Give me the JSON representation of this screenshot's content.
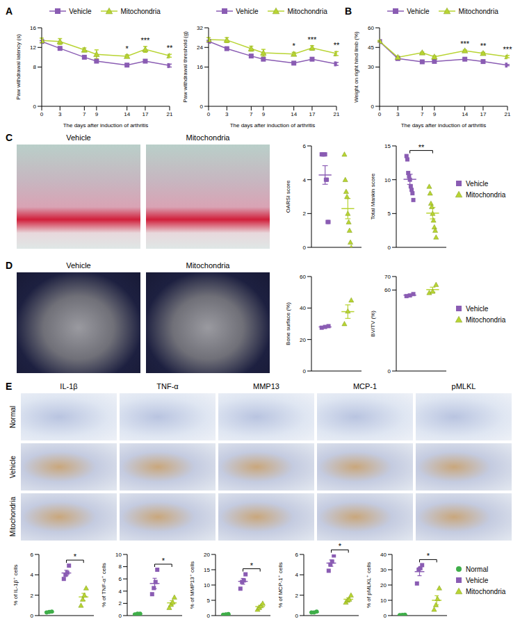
{
  "figure": {
    "panel_labels": [
      "A",
      "B",
      "C",
      "D",
      "E"
    ],
    "images": {
      "C": {
        "titles": [
          "Vehicle",
          "Mitochondria"
        ]
      },
      "D": {
        "titles": [
          "Vehicle",
          "Mitochondria"
        ]
      },
      "E": {
        "columns": [
          "IL-1β",
          "TNF-α",
          "MMP13",
          "MCP-1",
          "pMLKL"
        ],
        "rows": [
          "Normal",
          "Vehicle",
          "Mitochondria"
        ]
      }
    }
  },
  "chart_data": [
    {
      "type": "line",
      "x": [
        0,
        3,
        7,
        9,
        14,
        17,
        21
      ],
      "xlim": [
        0,
        21
      ],
      "xticks": [
        0,
        3,
        7,
        9,
        14,
        17,
        21
      ],
      "ylim": [
        0,
        16
      ],
      "yticks": [
        0,
        8,
        12,
        16
      ],
      "x_label": "The days after induction of arthritis",
      "y_label": "Paw withdrawal latency (s)",
      "legend": "top",
      "series": [
        {
          "name": "Vehicle",
          "color": "#8a5cb3",
          "marker": "square",
          "values": [
            13.2,
            11.8,
            10.0,
            9.2,
            8.4,
            9.2,
            8.3
          ],
          "errors": [
            0.2,
            0.2,
            0.2,
            0.2,
            0.2,
            0.2,
            0.3
          ]
        },
        {
          "name": "Mitochondria",
          "color": "#b8d432",
          "marker": "triangle",
          "values": [
            13.4,
            13.2,
            11.5,
            10.6,
            10.2,
            11.6,
            10.3
          ],
          "errors": [
            0.5,
            0.6,
            0.4,
            0.9,
            0.3,
            0.6,
            0.3
          ]
        }
      ],
      "annotations": [
        {
          "x": 14,
          "text": "*"
        },
        {
          "x": 17,
          "text": "***"
        },
        {
          "x": 21,
          "text": "**"
        }
      ]
    },
    {
      "type": "line",
      "x": [
        0,
        3,
        7,
        9,
        14,
        17,
        21
      ],
      "xlim": [
        0,
        21
      ],
      "xticks": [
        0,
        3,
        7,
        9,
        14,
        17,
        21
      ],
      "ylim": [
        0,
        32
      ],
      "yticks": [
        0,
        16,
        24,
        32
      ],
      "x_label": "The days after induction of arthritis",
      "y_label": "Paw withdrawal threshold (g)",
      "legend": "top",
      "series": [
        {
          "name": "Vehicle",
          "color": "#8a5cb3",
          "marker": "square",
          "values": [
            26.5,
            23.5,
            20.5,
            19.2,
            17.6,
            19.2,
            17.3
          ],
          "errors": [
            0.4,
            0.4,
            0.4,
            0.4,
            0.4,
            0.4,
            0.6
          ]
        },
        {
          "name": "Mitochondria",
          "color": "#b8d432",
          "marker": "triangle",
          "values": [
            27.2,
            27.0,
            23.5,
            21.8,
            21.3,
            23.8,
            21.5
          ],
          "errors": [
            0.8,
            1.0,
            1.0,
            1.4,
            0.7,
            0.9,
            0.8
          ]
        }
      ],
      "annotations": [
        {
          "x": 14,
          "text": "*"
        },
        {
          "x": 17,
          "text": "***"
        },
        {
          "x": 21,
          "text": "**"
        }
      ]
    },
    {
      "type": "line",
      "x": [
        0,
        3,
        7,
        9,
        14,
        17,
        21
      ],
      "xlim": [
        0,
        21
      ],
      "xticks": [
        0,
        3,
        7,
        9,
        14,
        17,
        21
      ],
      "ylim": [
        0,
        60
      ],
      "yticks": [
        0,
        30,
        45,
        60
      ],
      "x_label": "The days after induction of arthritis",
      "y_label": "Weight on right hind limb (%)",
      "legend": "top",
      "series": [
        {
          "name": "Vehicle",
          "color": "#8a5cb3",
          "marker": "square",
          "values": [
            49.5,
            36.5,
            34.0,
            34.3,
            36.0,
            34.2,
            31.5
          ],
          "errors": [
            0.5,
            0.6,
            0.6,
            0.5,
            0.5,
            0.5,
            0.5
          ]
        },
        {
          "name": "Mitochondria",
          "color": "#b8d432",
          "marker": "triangle",
          "values": [
            49.8,
            37.5,
            41.0,
            37.8,
            42.5,
            40.5,
            38.0
          ],
          "errors": [
            0.5,
            0.8,
            0.5,
            0.8,
            0.6,
            0.8,
            0.9
          ]
        }
      ],
      "annotations": [
        {
          "x": 14,
          "text": "***"
        },
        {
          "x": 17,
          "text": "**"
        },
        {
          "x": 21,
          "text": "***"
        }
      ]
    },
    {
      "type": "scatter",
      "y_label": "OARSI score",
      "ylim": [
        0,
        6
      ],
      "yticks": [
        0,
        2,
        4,
        6
      ],
      "tick_labels": "y",
      "series": [
        {
          "name": "Vehicle",
          "color": "#8a5cb3",
          "marker": "square",
          "values": [
            5.5,
            5.5,
            5.5,
            5.5,
            5.5,
            4,
            4,
            1.5,
            1.5
          ],
          "mean": 4.28,
          "sem": 0.55
        },
        {
          "name": "Mitochondria",
          "color": "#b8d432",
          "marker": "triangle",
          "values": [
            5.5,
            4,
            3.3,
            3,
            2,
            1.5,
            1,
            0.3,
            0
          ],
          "mean": 2.29,
          "sem": 0.6
        }
      ]
    },
    {
      "type": "scatter",
      "y_label": "Total Mankin score",
      "ylim": [
        0,
        15
      ],
      "yticks": [
        0,
        5,
        10,
        15
      ],
      "tick_labels": "y",
      "legend": "right",
      "series": [
        {
          "name": "Vehicle",
          "color": "#8a5cb3",
          "marker": "square",
          "values": [
            13.5,
            13,
            11,
            10.5,
            10,
            9,
            8.5,
            8,
            7
          ],
          "mean": 10.06,
          "sem": 0.75
        },
        {
          "name": "Mitochondria",
          "color": "#b8d432",
          "marker": "triangle",
          "values": [
            9,
            8,
            6.5,
            6,
            5,
            4,
            3,
            2.5,
            1.5
          ],
          "mean": 5.06,
          "sem": 0.85
        }
      ],
      "annotations": [
        {
          "between": [
            "Vehicle",
            "Mitochondria"
          ],
          "text": "**"
        }
      ]
    },
    {
      "type": "scatter",
      "y_label": "Bone surface (%)",
      "ylim": [
        0,
        60
      ],
      "yticks": [
        0,
        20,
        40,
        60
      ],
      "tick_labels": "y",
      "series": [
        {
          "name": "Vehicle",
          "color": "#8a5cb3",
          "marker": "square",
          "values": [
            27.5,
            28,
            28.5
          ],
          "mean": 28,
          "sem": 0.3
        },
        {
          "name": "Mitochondria",
          "color": "#b8d432",
          "marker": "triangle",
          "values": [
            30,
            38,
            45
          ],
          "mean": 37.7,
          "sem": 4.3
        }
      ]
    },
    {
      "type": "scatter",
      "y_label": "BV/TV (%)",
      "ylim": [
        0,
        70
      ],
      "yticks": [
        0,
        60,
        70
      ],
      "tick_labels": "y",
      "legend": "right",
      "series": [
        {
          "name": "Vehicle",
          "color": "#8a5cb3",
          "marker": "square",
          "values": [
            55.5,
            56,
            57
          ],
          "mean": 56.2,
          "sem": 0.45
        },
        {
          "name": "Mitochondria",
          "color": "#b8d432",
          "marker": "triangle",
          "values": [
            58,
            59,
            64
          ],
          "mean": 60.3,
          "sem": 1.8
        }
      ]
    },
    {
      "type": "scatter",
      "y_label": "% of IL-1β⁺ cells",
      "ylim": [
        0,
        6
      ],
      "yticks": [
        0,
        2,
        4,
        6
      ],
      "tick_labels": "y",
      "series": [
        {
          "name": "Normal",
          "color": "#3fae49",
          "marker": "circle",
          "values": [
            0.3,
            0.35,
            0.4
          ],
          "mean": 0.35,
          "sem": 0.03
        },
        {
          "name": "Vehicle",
          "color": "#8a5cb3",
          "marker": "square",
          "values": [
            3.6,
            4,
            4.2,
            4.9
          ],
          "mean": 4.18,
          "sem": 0.27
        },
        {
          "name": "Mitochondria",
          "color": "#b8d432",
          "marker": "triangle",
          "values": [
            1,
            1.6,
            2,
            2.7
          ],
          "mean": 1.83,
          "sem": 0.35
        }
      ],
      "annotations": [
        {
          "between": [
            "Vehicle",
            "Mitochondria"
          ],
          "text": "*"
        }
      ]
    },
    {
      "type": "scatter",
      "y_label": "% of TNF-α⁺ cells",
      "ylim": [
        0,
        10
      ],
      "yticks": [
        0,
        2,
        4,
        6,
        8,
        10
      ],
      "tick_labels": "y",
      "series": [
        {
          "name": "Normal",
          "color": "#3fae49",
          "marker": "circle",
          "values": [
            0.2,
            0.3,
            0.3
          ],
          "mean": 0.27,
          "sem": 0.03
        },
        {
          "name": "Vehicle",
          "color": "#8a5cb3",
          "marker": "square",
          "values": [
            3.5,
            4.5,
            5.5,
            7.5
          ],
          "mean": 5.25,
          "sem": 0.85
        },
        {
          "name": "Mitochondria",
          "color": "#b8d432",
          "marker": "triangle",
          "values": [
            1.3,
            1.8,
            2.2,
            3
          ],
          "mean": 2.08,
          "sem": 0.36
        }
      ],
      "annotations": [
        {
          "between": [
            "Vehicle",
            "Mitochondria"
          ],
          "text": "*"
        }
      ]
    },
    {
      "type": "scatter",
      "y_label": "% of MMP13⁺ cells",
      "ylim": [
        0,
        20
      ],
      "yticks": [
        0,
        5,
        10,
        15,
        20
      ],
      "tick_labels": "y",
      "series": [
        {
          "name": "Normal",
          "color": "#3fae49",
          "marker": "circle",
          "values": [
            0.3,
            0.4,
            0.5
          ],
          "mean": 0.4,
          "sem": 0.06
        },
        {
          "name": "Vehicle",
          "color": "#8a5cb3",
          "marker": "square",
          "values": [
            8.8,
            11,
            11.5,
            13.5
          ],
          "mean": 11.2,
          "sem": 0.96
        },
        {
          "name": "Mitochondria",
          "color": "#b8d432",
          "marker": "triangle",
          "values": [
            2,
            2.6,
            3.2,
            4
          ],
          "mean": 2.95,
          "sem": 0.42
        }
      ],
      "annotations": [
        {
          "between": [
            "Vehicle",
            "Mitochondria"
          ],
          "text": "*"
        }
      ]
    },
    {
      "type": "scatter",
      "y_label": "% of MCP-1⁺ cells",
      "ylim": [
        0,
        6
      ],
      "yticks": [
        0,
        2,
        4,
        6
      ],
      "tick_labels": "y",
      "series": [
        {
          "name": "Normal",
          "color": "#3fae49",
          "marker": "circle",
          "values": [
            0.3,
            0.3,
            0.4
          ],
          "mean": 0.33,
          "sem": 0.03
        },
        {
          "name": "Vehicle",
          "color": "#8a5cb3",
          "marker": "square",
          "values": [
            4.4,
            5,
            5.3,
            5.9
          ],
          "mean": 5.15,
          "sem": 0.31
        },
        {
          "name": "Mitochondria",
          "color": "#b8d432",
          "marker": "triangle",
          "values": [
            1.3,
            1.5,
            1.6,
            2
          ],
          "mean": 1.6,
          "sem": 0.15
        }
      ],
      "annotations": [
        {
          "between": [
            "Vehicle",
            "Mitochondria"
          ],
          "text": "*"
        }
      ]
    },
    {
      "type": "scatter",
      "y_label": "% of pMLKL⁺ cells",
      "ylim": [
        0,
        40
      ],
      "yticks": [
        0,
        10,
        20,
        30,
        40
      ],
      "tick_labels": "y",
      "legend": "right",
      "series": [
        {
          "name": "Normal",
          "color": "#3fae49",
          "marker": "circle",
          "values": [
            0.3,
            0.5,
            0.6
          ],
          "mean": 0.47,
          "sem": 0.09
        },
        {
          "name": "Vehicle",
          "color": "#8a5cb3",
          "marker": "square",
          "values": [
            21,
            30,
            31,
            33
          ],
          "mean": 28.75,
          "sem": 2.66
        },
        {
          "name": "Mitochondria",
          "color": "#b8d432",
          "marker": "triangle",
          "values": [
            4,
            7,
            11,
            18
          ],
          "mean": 10,
          "sem": 3.0
        }
      ],
      "annotations": [
        {
          "between": [
            "Vehicle",
            "Mitochondria"
          ],
          "text": "*"
        }
      ]
    }
  ]
}
